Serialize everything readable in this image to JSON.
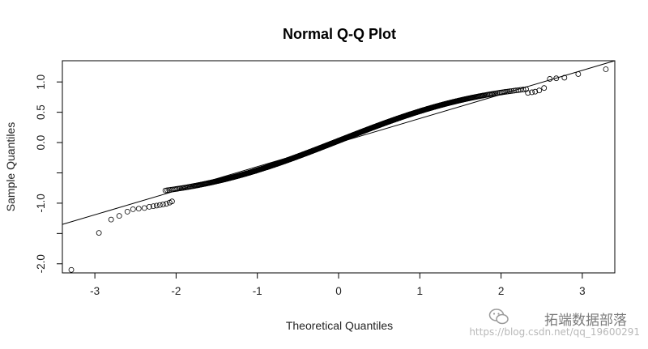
{
  "chart_data": {
    "type": "scatter",
    "title": "Normal Q-Q Plot",
    "xlabel": "Theoretical Quantiles",
    "ylabel": "Sample Quantiles",
    "xlim": [
      -3.4,
      3.4
    ],
    "ylim": [
      -2.15,
      1.35
    ],
    "xticks": [
      -3,
      -2,
      -1,
      0,
      1,
      2,
      3
    ],
    "xtick_labels": [
      "-3",
      "-2",
      "-1",
      "0",
      "1",
      "2",
      "3"
    ],
    "yticks": [
      -2.0,
      -1.5,
      -1.0,
      -0.5,
      0.0,
      0.5,
      1.0
    ],
    "ytick_labels": [
      "-2.0",
      "",
      "-1.0",
      "",
      "0.0",
      "0.5",
      "1.0"
    ],
    "reference_line": {
      "x": [
        -3.4,
        3.4
      ],
      "y": [
        -1.35,
        1.35
      ]
    },
    "n_points": 1000,
    "tail_points": {
      "x": [
        -3.29,
        -2.95,
        -2.8,
        -2.7,
        -2.6,
        -2.53,
        -2.46,
        -2.39,
        -2.33,
        -2.28,
        -2.24,
        -2.2,
        -2.16,
        -2.12,
        -2.08,
        -2.05,
        2.33,
        2.38,
        2.42,
        2.47,
        2.53,
        2.6,
        2.68,
        2.78,
        2.95,
        3.29
      ],
      "y": [
        -2.1,
        -1.49,
        -1.27,
        -1.21,
        -1.14,
        -1.1,
        -1.09,
        -1.08,
        -1.06,
        -1.05,
        -1.04,
        -1.03,
        -1.02,
        -1.01,
        -0.99,
        -0.97,
        0.82,
        0.83,
        0.84,
        0.86,
        0.9,
        1.05,
        1.06,
        1.07,
        1.13,
        1.21
      ]
    },
    "grid": false,
    "legend": "none",
    "point_style": "open circle",
    "colors": {
      "points": "#000000",
      "line": "#000000",
      "background": "#ffffff"
    }
  },
  "watermark": {
    "main": "拓端数据部落",
    "sub": "https://blog.csdn.net/qq_19600291"
  }
}
